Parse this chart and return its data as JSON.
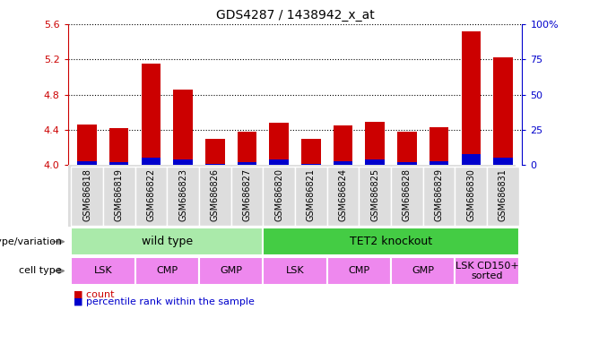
{
  "title": "GDS4287 / 1438942_x_at",
  "samples": [
    "GSM686818",
    "GSM686819",
    "GSM686822",
    "GSM686823",
    "GSM686826",
    "GSM686827",
    "GSM686820",
    "GSM686821",
    "GSM686824",
    "GSM686825",
    "GSM686828",
    "GSM686829",
    "GSM686830",
    "GSM686831"
  ],
  "counts": [
    4.46,
    4.42,
    5.15,
    4.86,
    4.3,
    4.38,
    4.48,
    4.3,
    4.45,
    4.49,
    4.38,
    4.43,
    5.52,
    5.22
  ],
  "percentile_ranks": [
    3,
    2,
    5,
    4,
    1,
    2,
    4,
    1,
    3,
    4,
    2,
    3,
    8,
    5
  ],
  "ylim_left": [
    4.0,
    5.6
  ],
  "ylim_right": [
    0,
    100
  ],
  "yticks_left": [
    4.0,
    4.4,
    4.8,
    5.2,
    5.6
  ],
  "yticks_right": [
    0,
    25,
    50,
    75,
    100
  ],
  "right_tick_labels": [
    "0",
    "25",
    "50",
    "75",
    "100%"
  ],
  "bar_color": "#cc0000",
  "pct_color": "#0000cc",
  "bg_color": "#ffffff",
  "grid_color": "#000000",
  "sample_bg_color": "#dddddd",
  "geno_wild_color": "#aaeaaa",
  "geno_ko_color": "#44cc44",
  "cell_color": "#ee88ee",
  "genotype_groups": [
    {
      "label": "wild type",
      "start": 0,
      "end": 5
    },
    {
      "label": "TET2 knockout",
      "start": 6,
      "end": 13
    }
  ],
  "cell_type_groups": [
    {
      "label": "LSK",
      "start": 0,
      "end": 1
    },
    {
      "label": "CMP",
      "start": 2,
      "end": 3
    },
    {
      "label": "GMP",
      "start": 4,
      "end": 5
    },
    {
      "label": "LSK",
      "start": 6,
      "end": 7
    },
    {
      "label": "CMP",
      "start": 8,
      "end": 9
    },
    {
      "label": "GMP",
      "start": 10,
      "end": 11
    },
    {
      "label": "LSK CD150+\nsorted",
      "start": 12,
      "end": 13
    }
  ],
  "left_tick_color": "#cc0000",
  "right_tick_color": "#0000cc",
  "arrow_color": "#888888"
}
